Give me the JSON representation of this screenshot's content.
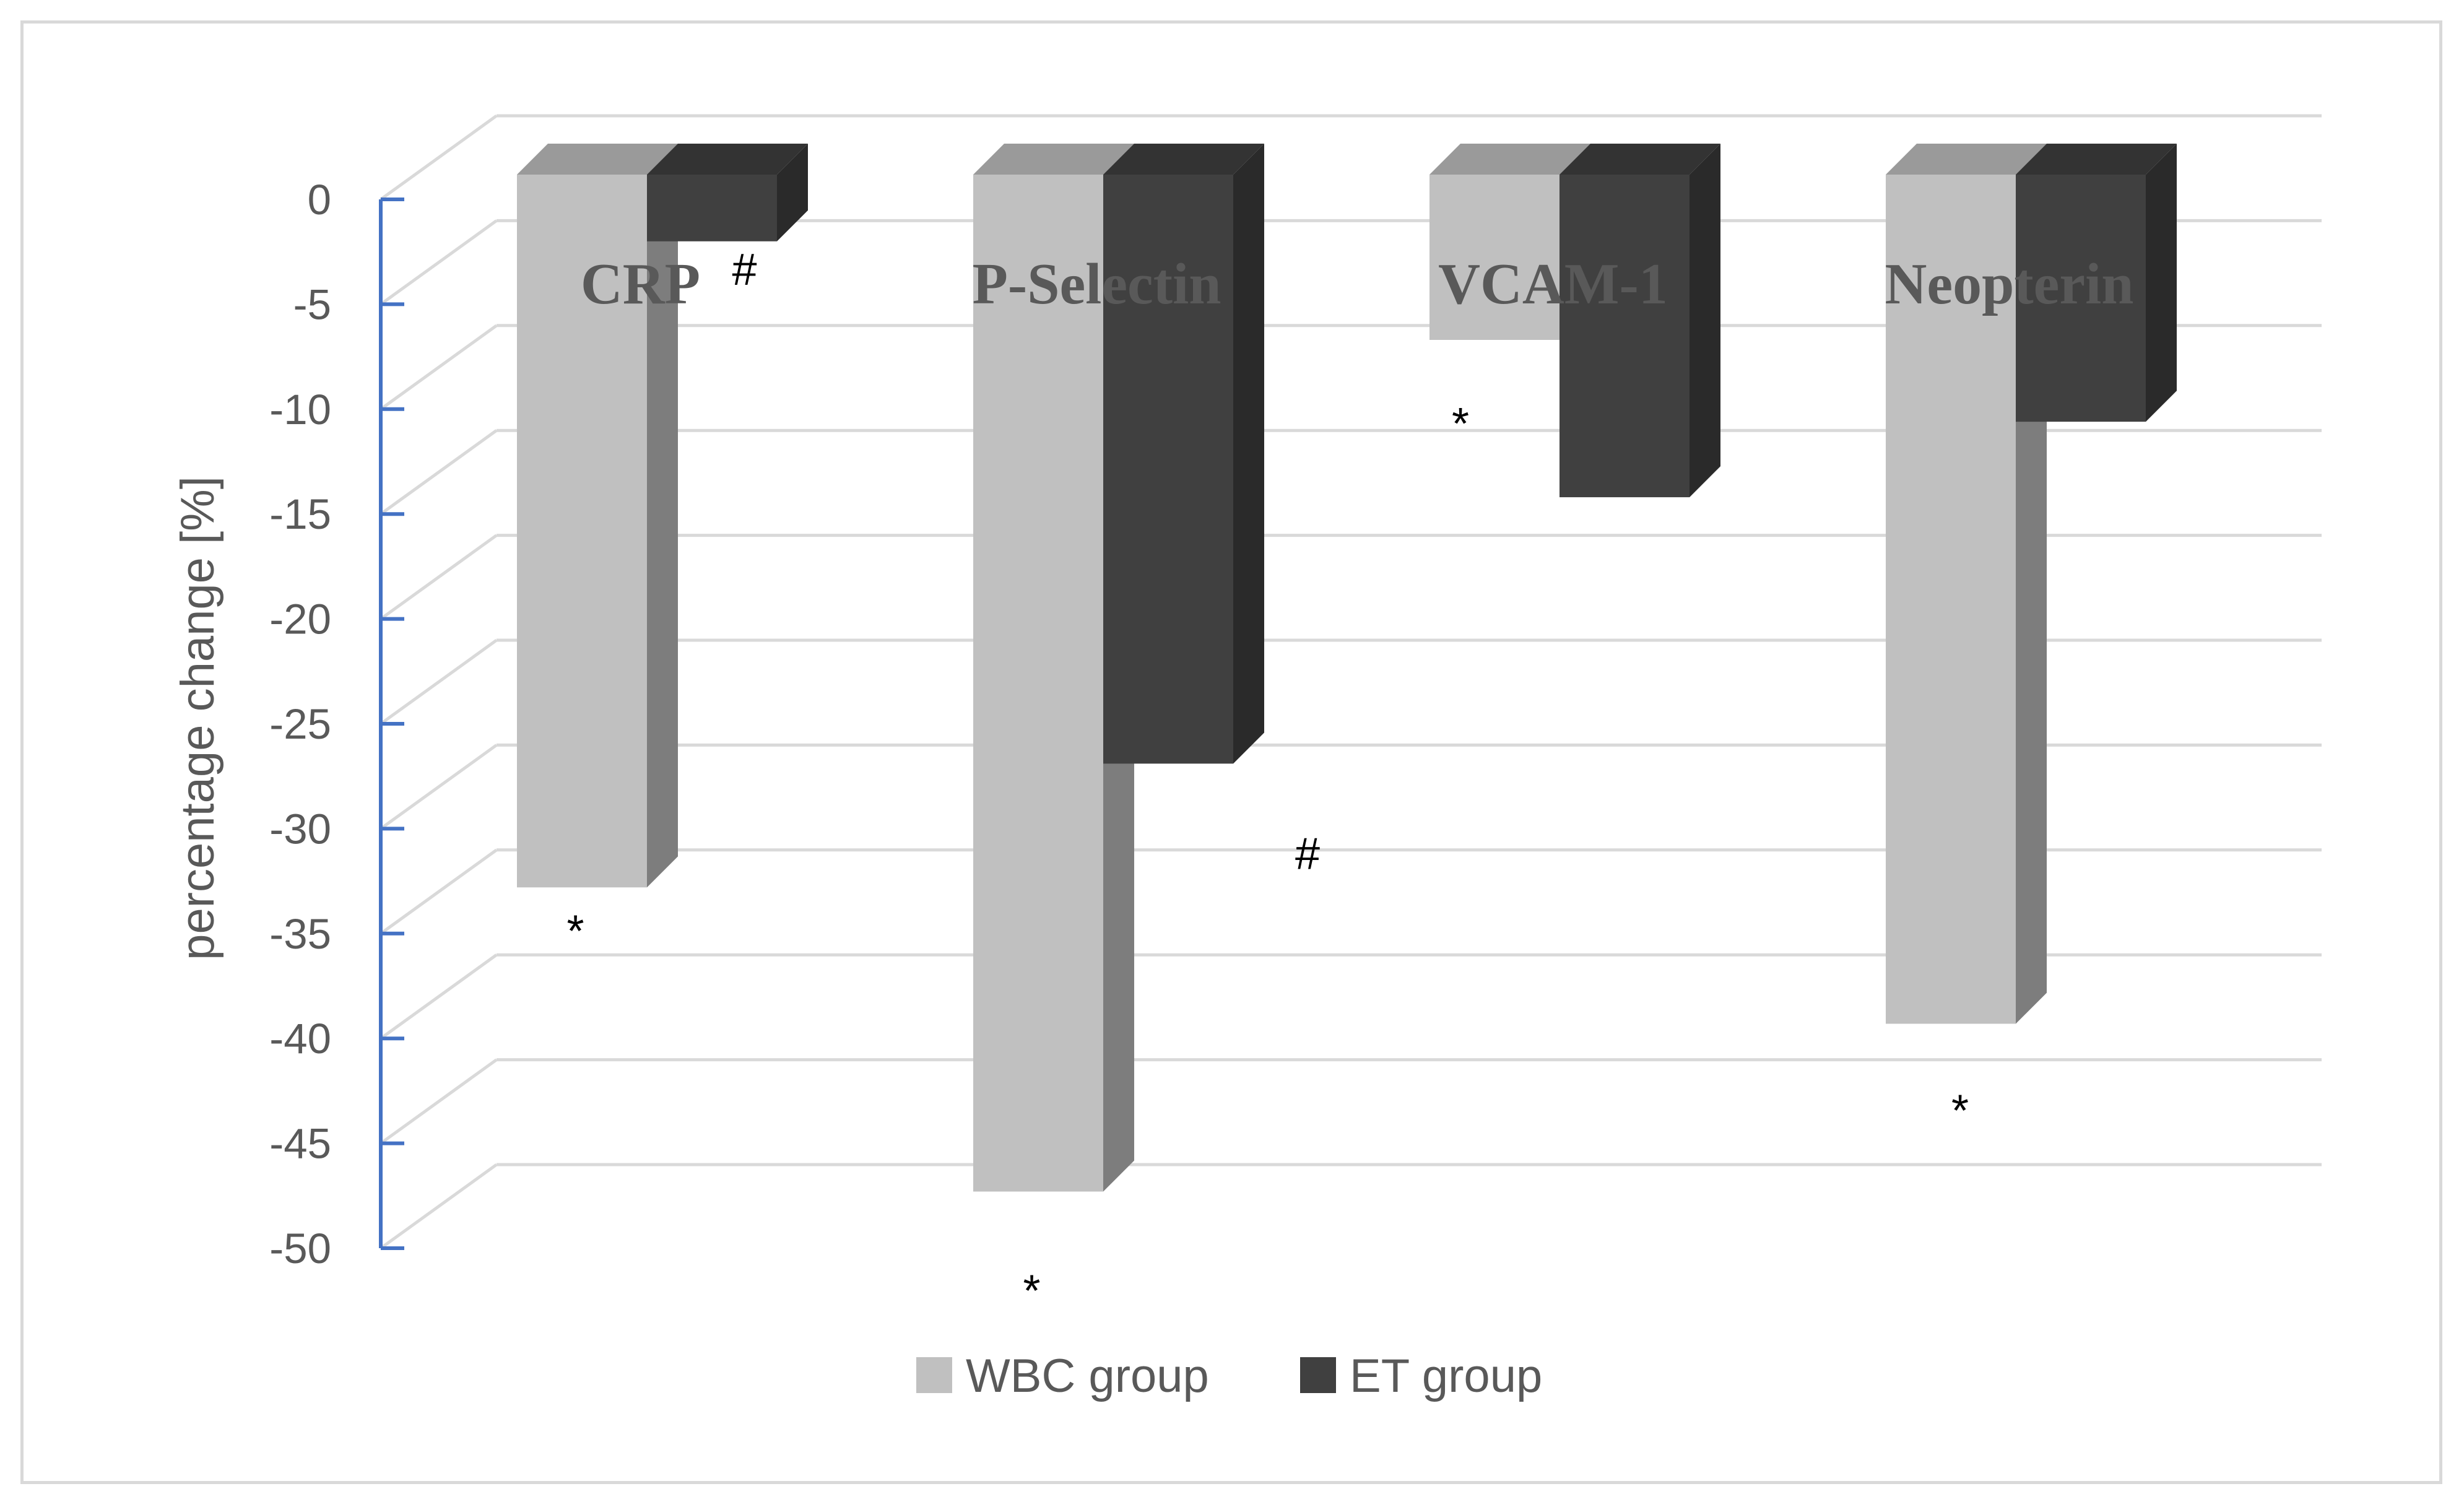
{
  "chart_data": {
    "type": "bar",
    "title": "",
    "xlabel": "",
    "ylabel": "percentage change [%]",
    "ylim": [
      -50,
      0
    ],
    "yticks": [
      0,
      -5,
      -10,
      -15,
      -20,
      -25,
      -30,
      -35,
      -40,
      -45,
      -50
    ],
    "categories": [
      "CRP",
      "P-Selectin",
      "VCAM-1",
      "Neopterin"
    ],
    "series": [
      {
        "name": "WBC group",
        "color": "#c0c0c0",
        "values": [
          -32.8,
          -47.3,
          -6.7,
          -39.3
        ]
      },
      {
        "name": "ET group",
        "color": "#404040",
        "values": [
          -2.0,
          -26.9,
          -14.2,
          -10.6
        ]
      }
    ],
    "annotations": [
      {
        "category": "CRP",
        "series": "WBC group",
        "text": "*"
      },
      {
        "category": "CRP",
        "series": "ET group",
        "text": "#"
      },
      {
        "category": "P-Selectin",
        "series": "WBC group",
        "text": "*"
      },
      {
        "category": "P-Selectin",
        "series": "ET group",
        "text": "#"
      },
      {
        "category": "VCAM-1",
        "series": "WBC group",
        "text": "*"
      },
      {
        "category": "Neopterin",
        "series": "WBC group",
        "text": "*"
      }
    ],
    "grid": true,
    "legend_position": "bottom",
    "projection": "3d-column"
  }
}
